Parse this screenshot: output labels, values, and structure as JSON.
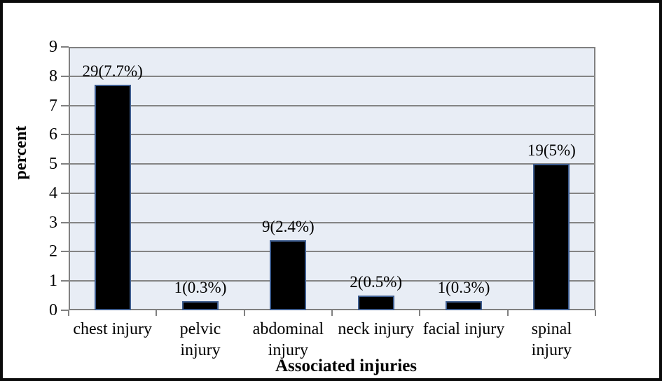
{
  "chart_data": {
    "type": "bar",
    "title": "",
    "xlabel": "Associated injuries",
    "ylabel": "percent",
    "categories": [
      "chest injury",
      "pelvic\ninjury",
      "abdominal\ninjury",
      "neck injury",
      "facial injury",
      "spinal\ninjury"
    ],
    "counts": [
      29,
      1,
      9,
      2,
      1,
      19
    ],
    "values": [
      7.7,
      0.3,
      2.4,
      0.5,
      0.3,
      5
    ],
    "value_labels": [
      "29(7.7%)",
      "1(0.3%)",
      "9(2.4%)",
      "2(0.5%)",
      "1(0.3%)",
      "19(5%)"
    ],
    "ylim": [
      0,
      9
    ],
    "ytick_step": 1,
    "yticks": [
      0,
      1,
      2,
      3,
      4,
      5,
      6,
      7,
      8,
      9
    ],
    "grid": "horizontal",
    "legend": "none",
    "colors": {
      "bar_fill": "#000000",
      "bar_border": "#3e5d8f",
      "plot_background": "#e8edf5",
      "gridline": "#848484",
      "axis_line": "#808080",
      "frame": "#0b0b0b",
      "text": "#000000",
      "page_background": "#ffffff"
    }
  }
}
